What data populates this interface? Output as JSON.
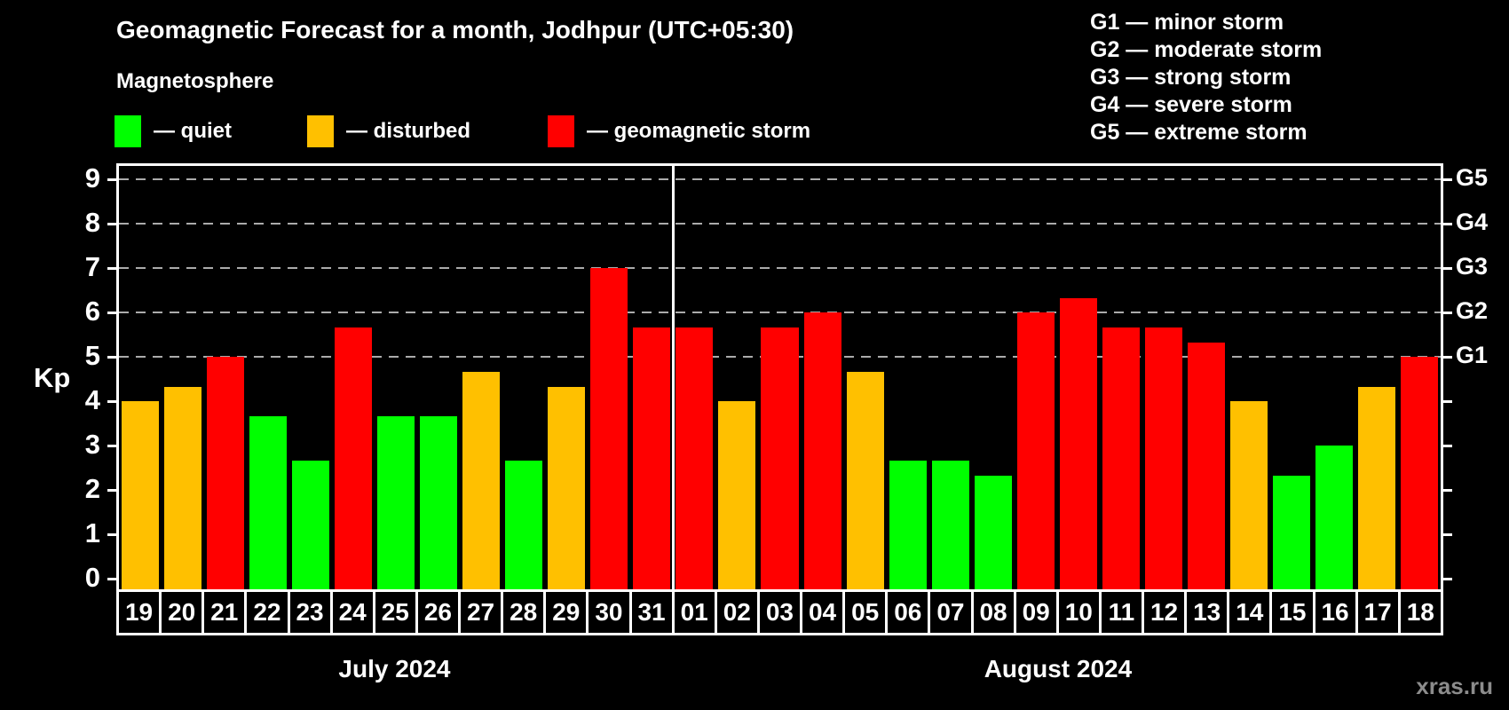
{
  "title": "Geomagnetic Forecast for a month, Jodhpur (UTC+05:30)",
  "subtitle": "Magnetosphere",
  "legend": {
    "items": [
      {
        "level": "quiet",
        "label": "— quiet"
      },
      {
        "level": "disturbed",
        "label": "— disturbed"
      },
      {
        "level": "storm",
        "label": "— geomagnetic storm"
      }
    ]
  },
  "g_scale": [
    {
      "code": "G1",
      "label": "G1 — minor storm",
      "kp": 5
    },
    {
      "code": "G2",
      "label": "G2 — moderate storm",
      "kp": 6
    },
    {
      "code": "G3",
      "label": "G3 — strong storm",
      "kp": 7
    },
    {
      "code": "G4",
      "label": "G4 — severe storm",
      "kp": 8
    },
    {
      "code": "G5",
      "label": "G5 — extreme storm",
      "kp": 9
    }
  ],
  "colors": {
    "quiet": "#00FF00",
    "disturbed": "#FFC000",
    "storm": "#FF0000",
    "background": "#000000",
    "grid": "#ABABAB",
    "frame": "#FFFFFF",
    "watermark": "#8C8C8C"
  },
  "axis": {
    "kp_label": "Kp",
    "left_ticks": [
      0,
      1,
      2,
      3,
      4,
      5,
      6,
      7,
      8,
      9
    ],
    "gridline_levels": [
      5,
      6,
      7,
      8,
      9
    ]
  },
  "months": [
    {
      "label": "July 2024",
      "days": 13
    },
    {
      "label": "August 2024",
      "days": 18
    }
  ],
  "watermark": "xras.ru",
  "chart_data": {
    "type": "bar",
    "title": "Geomagnetic Forecast for a month, Jodhpur (UTC+05:30)",
    "xlabel": "",
    "ylabel": "Kp",
    "ylim": [
      0,
      9.4
    ],
    "grid": "dashed horizontal at Kp 5-9",
    "legend_position": "top-left",
    "right_axis_labels": {
      "5": "G1",
      "6": "G2",
      "7": "G3",
      "8": "G4",
      "9": "G5"
    },
    "bars": [
      {
        "month": "July 2024",
        "day": "19",
        "kp": 4.0,
        "level": "disturbed"
      },
      {
        "month": "July 2024",
        "day": "20",
        "kp": 4.33,
        "level": "disturbed"
      },
      {
        "month": "July 2024",
        "day": "21",
        "kp": 5.0,
        "level": "storm"
      },
      {
        "month": "July 2024",
        "day": "22",
        "kp": 3.67,
        "level": "quiet"
      },
      {
        "month": "July 2024",
        "day": "23",
        "kp": 2.67,
        "level": "quiet"
      },
      {
        "month": "July 2024",
        "day": "24",
        "kp": 5.67,
        "level": "storm"
      },
      {
        "month": "July 2024",
        "day": "25",
        "kp": 3.67,
        "level": "quiet"
      },
      {
        "month": "July 2024",
        "day": "26",
        "kp": 3.67,
        "level": "quiet"
      },
      {
        "month": "July 2024",
        "day": "27",
        "kp": 4.67,
        "level": "disturbed"
      },
      {
        "month": "July 2024",
        "day": "28",
        "kp": 2.67,
        "level": "quiet"
      },
      {
        "month": "July 2024",
        "day": "29",
        "kp": 4.33,
        "level": "disturbed"
      },
      {
        "month": "July 2024",
        "day": "30",
        "kp": 7.0,
        "level": "storm"
      },
      {
        "month": "July 2024",
        "day": "31",
        "kp": 5.67,
        "level": "storm"
      },
      {
        "month": "August 2024",
        "day": "01",
        "kp": 5.67,
        "level": "storm"
      },
      {
        "month": "August 2024",
        "day": "02",
        "kp": 4.0,
        "level": "disturbed"
      },
      {
        "month": "August 2024",
        "day": "03",
        "kp": 5.67,
        "level": "storm"
      },
      {
        "month": "August 2024",
        "day": "04",
        "kp": 6.0,
        "level": "storm"
      },
      {
        "month": "August 2024",
        "day": "05",
        "kp": 4.67,
        "level": "disturbed"
      },
      {
        "month": "August 2024",
        "day": "06",
        "kp": 2.67,
        "level": "quiet"
      },
      {
        "month": "August 2024",
        "day": "07",
        "kp": 2.67,
        "level": "quiet"
      },
      {
        "month": "August 2024",
        "day": "08",
        "kp": 2.33,
        "level": "quiet"
      },
      {
        "month": "August 2024",
        "day": "09",
        "kp": 6.0,
        "level": "storm"
      },
      {
        "month": "August 2024",
        "day": "10",
        "kp": 6.33,
        "level": "storm"
      },
      {
        "month": "August 2024",
        "day": "11",
        "kp": 5.67,
        "level": "storm"
      },
      {
        "month": "August 2024",
        "day": "12",
        "kp": 5.67,
        "level": "storm"
      },
      {
        "month": "August 2024",
        "day": "13",
        "kp": 5.33,
        "level": "storm"
      },
      {
        "month": "August 2024",
        "day": "14",
        "kp": 4.0,
        "level": "disturbed"
      },
      {
        "month": "August 2024",
        "day": "15",
        "kp": 2.33,
        "level": "quiet"
      },
      {
        "month": "August 2024",
        "day": "16",
        "kp": 3.0,
        "level": "quiet"
      },
      {
        "month": "August 2024",
        "day": "17",
        "kp": 4.33,
        "level": "disturbed"
      },
      {
        "month": "August 2024",
        "day": "18",
        "kp": 5.0,
        "level": "storm"
      }
    ]
  }
}
